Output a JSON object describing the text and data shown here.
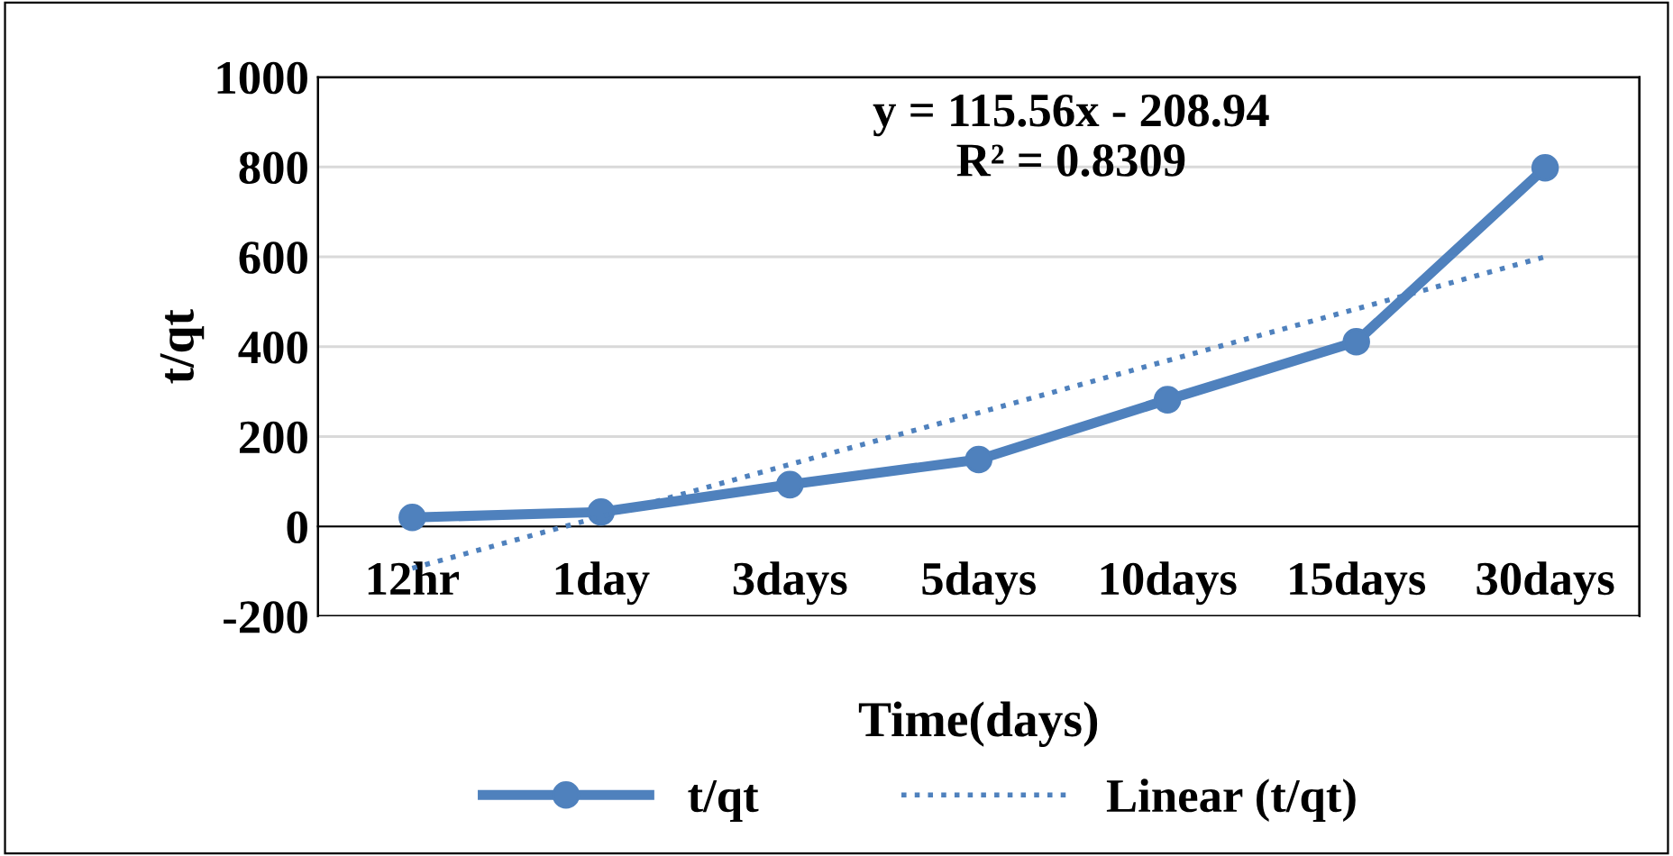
{
  "chart_data": {
    "type": "line",
    "xlabel": "Time(days)",
    "ylabel": "t/qt",
    "categories": [
      "12hr",
      "1day",
      "3days",
      "5days",
      "10days",
      "15days",
      "30days"
    ],
    "series": [
      {
        "name": "t/qt",
        "color": "#4f81bd",
        "values": [
          20,
          32,
          93,
          149,
          282,
          411,
          798
        ],
        "marker": "circle",
        "line_style": "solid"
      },
      {
        "name": "Linear (t/qt)",
        "color": "#4f81bd",
        "values": [
          -93,
          22,
          138,
          253,
          369,
          484,
          600
        ],
        "marker": "none",
        "line_style": "dotted"
      }
    ],
    "ylim": [
      -200,
      1000
    ],
    "yticks": [
      -200,
      0,
      200,
      400,
      600,
      800,
      1000
    ],
    "grid": "y",
    "legend": "bottom",
    "annotations": [
      "y = 115.56x - 208.94\nR² = 0.8309"
    ]
  }
}
